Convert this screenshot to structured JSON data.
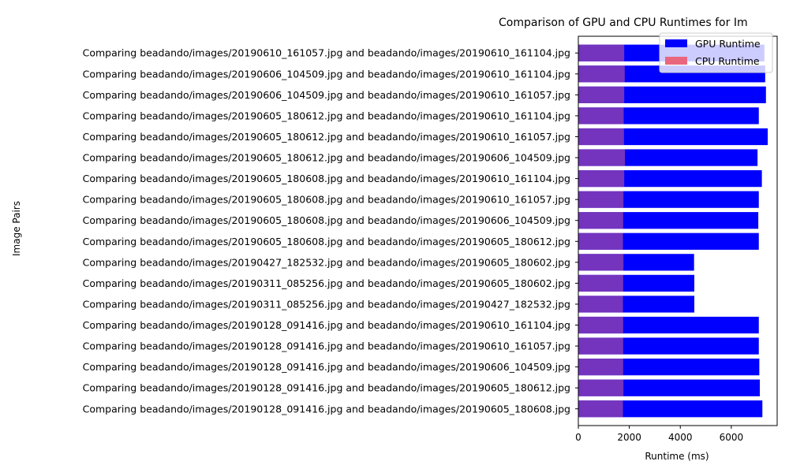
{
  "chart_data": {
    "type": "bar",
    "orientation": "horizontal",
    "title": "Comparison of GPU and CPU Runtimes for Im",
    "xlabel": "Runtime (ms)",
    "ylabel": "Image Pairs",
    "xlim": [
      0,
      7800
    ],
    "xticks": [
      0,
      2000,
      4000,
      6000
    ],
    "grid": false,
    "legend_position": "top-right",
    "categories": [
      "Comparing beadando/images/20190610_161057.jpg and beadando/images/20190610_161104.jpg",
      "Comparing beadando/images/20190606_104509.jpg and beadando/images/20190610_161104.jpg",
      "Comparing beadando/images/20190606_104509.jpg and beadando/images/20190610_161057.jpg",
      "Comparing beadando/images/20190605_180612.jpg and beadando/images/20190610_161104.jpg",
      "Comparing beadando/images/20190605_180612.jpg and beadando/images/20190610_161057.jpg",
      "Comparing beadando/images/20190605_180612.jpg and beadando/images/20190606_104509.jpg",
      "Comparing beadando/images/20190605_180608.jpg and beadando/images/20190610_161104.jpg",
      "Comparing beadando/images/20190605_180608.jpg and beadando/images/20190610_161057.jpg",
      "Comparing beadando/images/20190605_180608.jpg and beadando/images/20190606_104509.jpg",
      "Comparing beadando/images/20190605_180608.jpg and beadando/images/20190605_180612.jpg",
      "Comparing beadando/images/20190427_182532.jpg and beadando/images/20190605_180602.jpg",
      "Comparing beadando/images/20190311_085256.jpg and beadando/images/20190605_180602.jpg",
      "Comparing beadando/images/20190311_085256.jpg and beadando/images/20190427_182532.jpg",
      "Comparing beadando/images/20190128_091416.jpg and beadando/images/20190610_161104.jpg",
      "Comparing beadando/images/20190128_091416.jpg and beadando/images/20190610_161057.jpg",
      "Comparing beadando/images/20190128_091416.jpg and beadando/images/20190606_104509.jpg",
      "Comparing beadando/images/20190128_091416.jpg and beadando/images/20190605_180612.jpg",
      "Comparing beadando/images/20190128_091416.jpg and beadando/images/20190605_180608.jpg"
    ],
    "series": [
      {
        "name": "GPU Runtime",
        "color": "#0000ff",
        "values": [
          7300,
          7330,
          7360,
          7080,
          7430,
          7030,
          7200,
          7080,
          7060,
          7080,
          4540,
          4550,
          4550,
          7080,
          7080,
          7100,
          7120,
          7220
        ]
      },
      {
        "name": "CPU Runtime",
        "color": "#e8677e",
        "opacity": 0.5,
        "values": [
          1800,
          1820,
          1800,
          1780,
          1790,
          1830,
          1800,
          1770,
          1760,
          1750,
          1770,
          1760,
          1750,
          1760,
          1760,
          1760,
          1770,
          1750
        ]
      }
    ]
  }
}
